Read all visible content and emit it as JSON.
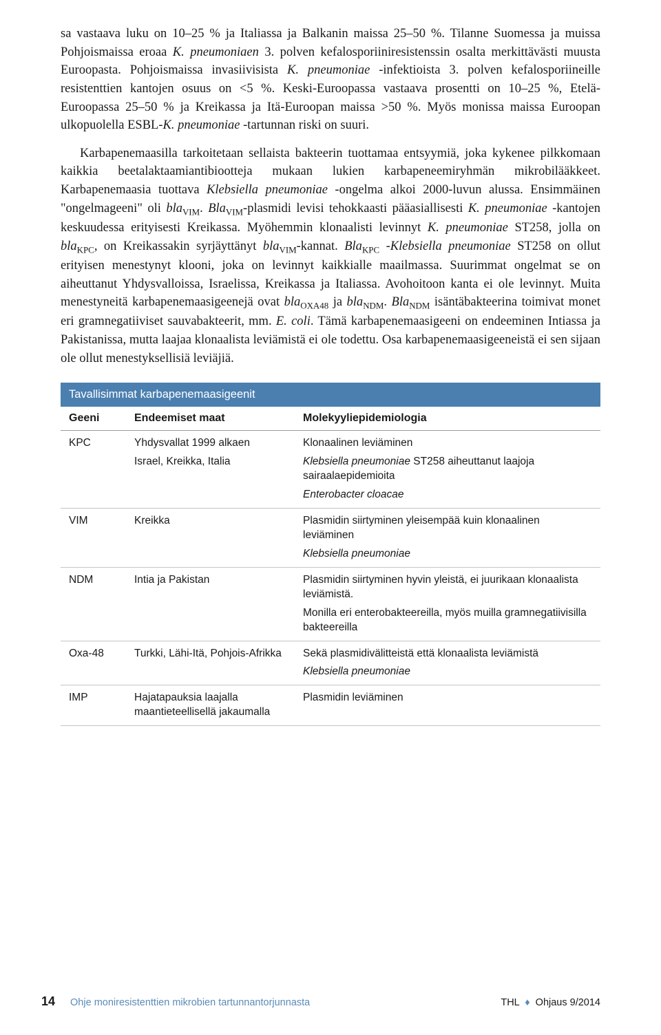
{
  "paragraphs": {
    "p1_a": "sa vastaava luku on 10–25 % ja Italiassa ja Balkanin maissa 25–50 %. Tilanne Suomessa ja muissa Pohjoismaissa eroaa ",
    "p1_i1": "K. pneumoniaen",
    "p1_b": " 3. polven kefalosporiiniresistenssin osalta merkittävästi muusta Euroopasta. Pohjoismaissa invasiivisista ",
    "p1_i2": "K. pneumoniae",
    "p1_c": " -infektioista 3. polven kefalosporiineille resistenttien kantojen osuus on <5 %. Keski-Euroopassa vastaava prosentti on 10–25 %, Etelä-Euroopassa 25–50 % ja Kreikassa ja Itä-Euroopan maissa >50 %. Myös monissa maissa Euroopan ulkopuolella ESBL-",
    "p1_i3": "K. pneumoniae",
    "p1_d": " -tartunnan riski on suuri.",
    "p2_a": "Karbapenemaasilla tarkoitetaan sellaista bakteerin tuottamaa entsyymiä, joka kykenee pilkkomaan kaikkia beetalaktaamiantibiootteja mukaan lukien karbapeneemiryhmän mikrobilääkkeet. Karbapenemaasia tuottava ",
    "p2_i1": "Klebsiella pneumoniae",
    "p2_b": " -ongelma alkoi 2000-luvun alussa. Ensimmäinen \"ongelmageeni\" oli ",
    "p2_i2": "bla",
    "p2_sub1": "VIM",
    "p2_c": ". ",
    "p2_i3": "Bla",
    "p2_sub2": "VIM",
    "p2_d": "-plasmidi levisi tehokkaasti pääasiallisesti ",
    "p2_i4": "K. pneumoniae",
    "p2_e": " -kantojen keskuudessa erityisesti Kreikassa. Myöhemmin klonaalisti levinnyt ",
    "p2_i5": "K. pneumoniae",
    "p2_f": " ST258, jolla on ",
    "p2_i6": "bla",
    "p2_sub3": "KPC",
    "p2_g": ", on Kreikassakin syrjäyttänyt ",
    "p2_i7": "bla",
    "p2_sub4": "VIM",
    "p2_h": "-kannat. ",
    "p2_i8": "Bla",
    "p2_sub5": "KPC",
    "p2_j": " -",
    "p2_i9": "Klebsiella pneumoniae",
    "p2_k": " ST258 on ollut erityisen menestynyt klooni, joka on levinnyt kaikkialle maailmassa. Suurimmat ongelmat se on aiheuttanut Yhdysvalloissa, Israelissa, Kreikassa ja Italiassa. Avohoitoon kanta ei ole levinnyt. Muita menestyneitä karbapenemaasigeenejä ovat ",
    "p2_i10": "bla",
    "p2_sub6": "OXA48",
    "p2_l": " ja ",
    "p2_i11": "bla",
    "p2_sub7": "NDM",
    "p2_m": ". ",
    "p2_i12": "Bla",
    "p2_sub8": "NDM",
    "p2_n": " isäntäbakteerina toimivat monet eri gramnegatiiviset sauvabakteerit, mm. ",
    "p2_i13": "E. coli",
    "p2_o": ". Tämä karbapenemaasigeeni on endeeminen Intiassa ja Pakistanissa, mutta laajaa klonaalista leviämistä ei ole todettu. Osa karbapenemaasigeeneistä ei sen sijaan ole ollut menestyksellisiä leviäjiä."
  },
  "table": {
    "title": "Tavallisimmat karbapenemaasigeenit",
    "headers": {
      "c1": "Geeni",
      "c2": "Endeemiset maat",
      "c3": "Molekyyliepidemiologia"
    },
    "rows": {
      "r1": {
        "gene": "KPC",
        "countries_l1": "Yhdysvallat 1999 alkaen",
        "countries_l2": "Israel, Kreikka, Italia",
        "epi_l1": "Klonaalinen leviäminen",
        "epi_l2a": "Klebsiella pneumoniae",
        "epi_l2b": " ST258 aiheuttanut laajoja sairaalaepidemioita",
        "epi_l3": "Enterobacter cloacae"
      },
      "r2": {
        "gene": "VIM",
        "countries": "Kreikka",
        "epi_l1": "Plasmidin siirtyminen yleisempää kuin klonaalinen leviäminen",
        "epi_l2": "Klebsiella pneumoniae"
      },
      "r3": {
        "gene": "NDM",
        "countries": "Intia ja Pakistan",
        "epi_l1": "Plasmidin siirtyminen hyvin yleistä, ei juurikaan klonaalista leviämistä.",
        "epi_l2": "Monilla eri enterobakteereilla, myös muilla gramnegatiivisilla bakteereilla"
      },
      "r4": {
        "gene": "Oxa-48",
        "countries": "Turkki, Lähi-Itä, Pohjois-Afrikka",
        "epi_l1": "Sekä plasmidivälitteistä että klonaalista leviämistä",
        "epi_l2": "Klebsiella pneumoniae"
      },
      "r5": {
        "gene": "IMP",
        "countries": "Hajatapauksia laajalla maantieteellisellä jakaumalla",
        "epi_l1": "Plasmidin leviäminen"
      }
    }
  },
  "footer": {
    "page": "14",
    "title": "Ohje moniresistenttien mikrobien tartunnantorjunnasta",
    "right_a": "THL",
    "right_b": "Ohjaus 9/2014"
  },
  "colors": {
    "header_bg": "#4a7fb0",
    "footer_accent": "#5a8bb8"
  }
}
